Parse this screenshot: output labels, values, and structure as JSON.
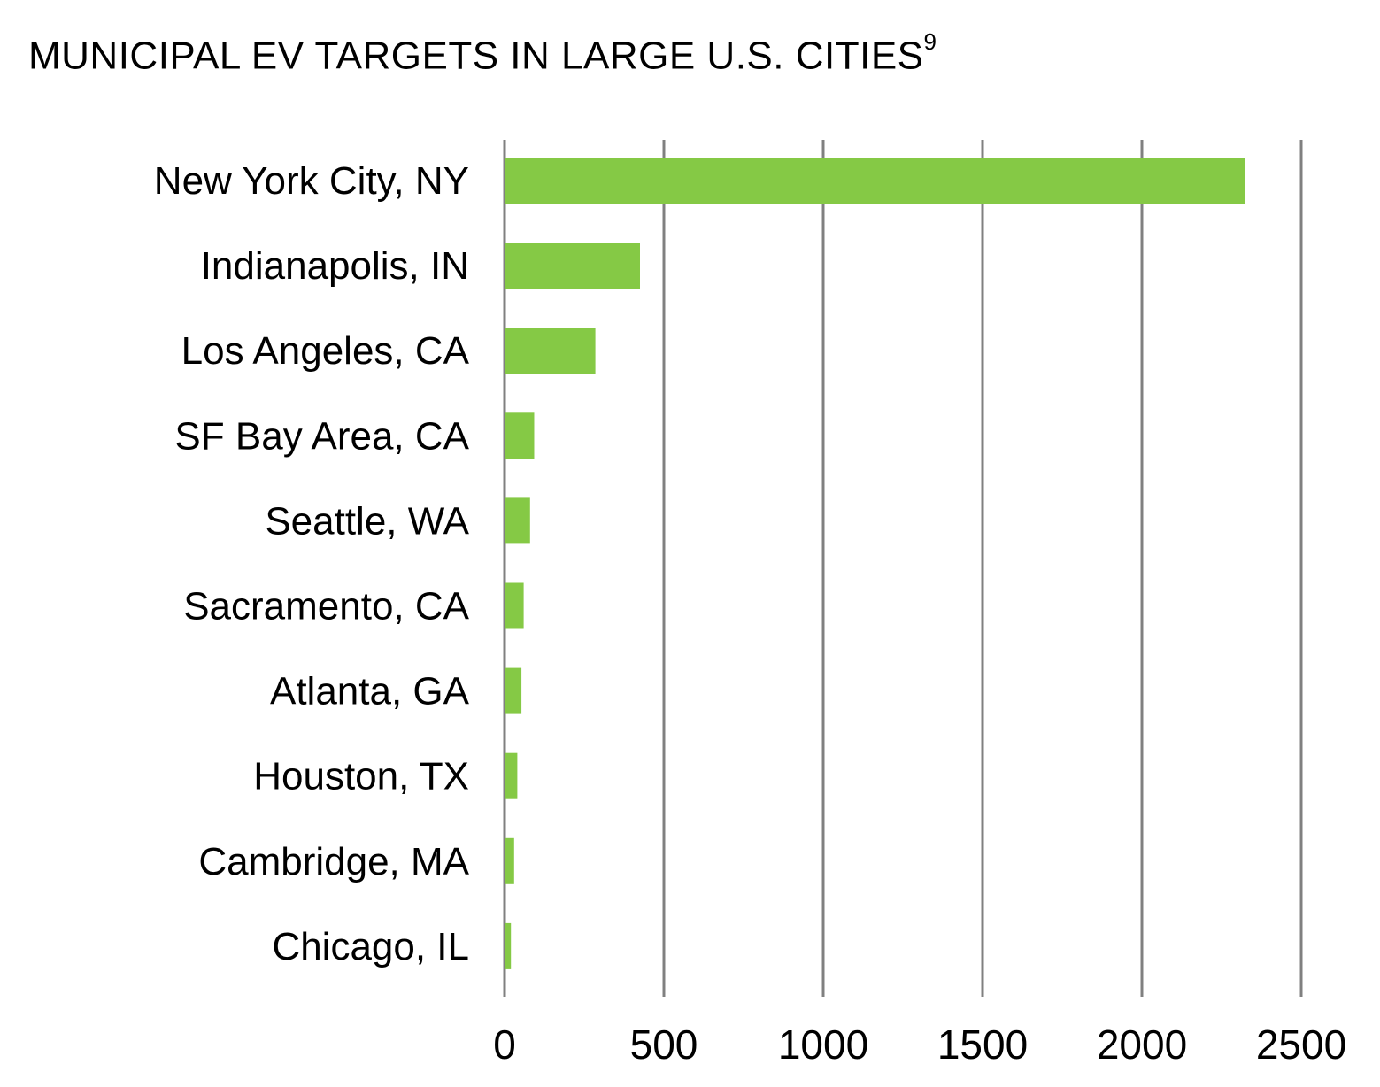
{
  "title": {
    "text": "MUNICIPAL EV TARGETS IN LARGE U.S. CITIES",
    "footnote": "9"
  },
  "colors": {
    "bar": "#85c945",
    "grid": "#808080"
  },
  "chart_data": {
    "type": "bar",
    "orientation": "horizontal",
    "title": "MUNICIPAL EV TARGETS IN LARGE U.S. CITIES",
    "categories": [
      "New York City, NY",
      "Indianapolis, IN",
      "Los Angeles, CA",
      "SF Bay Area, CA",
      "Seattle, WA",
      "Sacramento, CA",
      "Atlanta, GA",
      "Houston, TX",
      "Cambridge, MA",
      "Chicago, IL"
    ],
    "values": [
      2325,
      425,
      285,
      93,
      80,
      60,
      53,
      40,
      30,
      20
    ],
    "xlim": [
      0,
      2500
    ],
    "xticks": [
      0,
      500,
      1000,
      1500,
      2000,
      2500
    ],
    "xlabel": "",
    "ylabel": "",
    "grid": "vertical",
    "legend": "none"
  }
}
